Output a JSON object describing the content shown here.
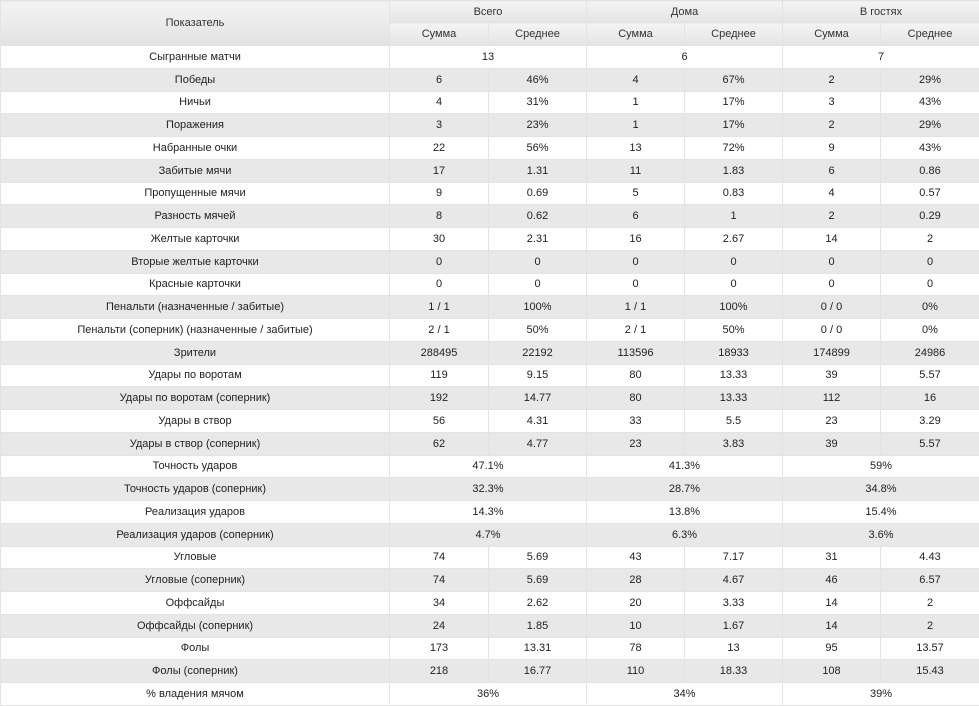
{
  "header": {
    "label": "Показатель",
    "groups": [
      "Всего",
      "Дома",
      "В гостях"
    ],
    "sub": [
      "Сумма",
      "Среднее"
    ]
  },
  "rows": [
    {
      "label": "Сыгранные матчи",
      "merged": true,
      "v": [
        "13",
        "6",
        "7"
      ]
    },
    {
      "label": "Победы",
      "merged": false,
      "v": [
        "6",
        "46%",
        "4",
        "67%",
        "2",
        "29%"
      ]
    },
    {
      "label": "Ничьи",
      "merged": false,
      "v": [
        "4",
        "31%",
        "1",
        "17%",
        "3",
        "43%"
      ]
    },
    {
      "label": "Поражения",
      "merged": false,
      "v": [
        "3",
        "23%",
        "1",
        "17%",
        "2",
        "29%"
      ]
    },
    {
      "label": "Набранные очки",
      "merged": false,
      "v": [
        "22",
        "56%",
        "13",
        "72%",
        "9",
        "43%"
      ]
    },
    {
      "label": "Забитые мячи",
      "merged": false,
      "v": [
        "17",
        "1.31",
        "11",
        "1.83",
        "6",
        "0.86"
      ]
    },
    {
      "label": "Пропущенные мячи",
      "merged": false,
      "v": [
        "9",
        "0.69",
        "5",
        "0.83",
        "4",
        "0.57"
      ]
    },
    {
      "label": "Разность мячей",
      "merged": false,
      "v": [
        "8",
        "0.62",
        "6",
        "1",
        "2",
        "0.29"
      ]
    },
    {
      "label": "Желтые карточки",
      "merged": false,
      "v": [
        "30",
        "2.31",
        "16",
        "2.67",
        "14",
        "2"
      ]
    },
    {
      "label": "Вторые желтые карточки",
      "merged": false,
      "v": [
        "0",
        "0",
        "0",
        "0",
        "0",
        "0"
      ]
    },
    {
      "label": "Красные карточки",
      "merged": false,
      "v": [
        "0",
        "0",
        "0",
        "0",
        "0",
        "0"
      ]
    },
    {
      "label": "Пенальти (назначенные / забитые)",
      "merged": false,
      "v": [
        "1 / 1",
        "100%",
        "1 / 1",
        "100%",
        "0 / 0",
        "0%"
      ]
    },
    {
      "label": "Пенальти (соперник) (назначенные / забитые)",
      "merged": false,
      "v": [
        "2 / 1",
        "50%",
        "2 / 1",
        "50%",
        "0 / 0",
        "0%"
      ]
    },
    {
      "label": "Зрители",
      "merged": false,
      "v": [
        "288495",
        "22192",
        "113596",
        "18933",
        "174899",
        "24986"
      ]
    },
    {
      "label": "Удары по воротам",
      "merged": false,
      "v": [
        "119",
        "9.15",
        "80",
        "13.33",
        "39",
        "5.57"
      ]
    },
    {
      "label": "Удары по воротам (соперник)",
      "merged": false,
      "v": [
        "192",
        "14.77",
        "80",
        "13.33",
        "112",
        "16"
      ]
    },
    {
      "label": "Удары в створ",
      "merged": false,
      "v": [
        "56",
        "4.31",
        "33",
        "5.5",
        "23",
        "3.29"
      ]
    },
    {
      "label": "Удары в створ (соперник)",
      "merged": false,
      "v": [
        "62",
        "4.77",
        "23",
        "3.83",
        "39",
        "5.57"
      ]
    },
    {
      "label": "Точность ударов",
      "merged": true,
      "v": [
        "47.1%",
        "41.3%",
        "59%"
      ]
    },
    {
      "label": "Точность ударов (соперник)",
      "merged": true,
      "v": [
        "32.3%",
        "28.7%",
        "34.8%"
      ]
    },
    {
      "label": "Реализация ударов",
      "merged": true,
      "v": [
        "14.3%",
        "13.8%",
        "15.4%"
      ]
    },
    {
      "label": "Реализация ударов (соперник)",
      "merged": true,
      "v": [
        "4.7%",
        "6.3%",
        "3.6%"
      ]
    },
    {
      "label": "Угловые",
      "merged": false,
      "v": [
        "74",
        "5.69",
        "43",
        "7.17",
        "31",
        "4.43"
      ]
    },
    {
      "label": "Угловые (соперник)",
      "merged": false,
      "v": [
        "74",
        "5.69",
        "28",
        "4.67",
        "46",
        "6.57"
      ]
    },
    {
      "label": "Оффсайды",
      "merged": false,
      "v": [
        "34",
        "2.62",
        "20",
        "3.33",
        "14",
        "2"
      ]
    },
    {
      "label": "Оффсайды (соперник)",
      "merged": false,
      "v": [
        "24",
        "1.85",
        "10",
        "1.67",
        "14",
        "2"
      ]
    },
    {
      "label": "Фолы",
      "merged": false,
      "v": [
        "173",
        "13.31",
        "78",
        "13",
        "95",
        "13.57"
      ]
    },
    {
      "label": "Фолы (соперник)",
      "merged": false,
      "v": [
        "218",
        "16.77",
        "110",
        "18.33",
        "108",
        "15.43"
      ]
    },
    {
      "label": "% владения мячом",
      "merged": true,
      "v": [
        "36%",
        "34%",
        "39%"
      ]
    }
  ]
}
